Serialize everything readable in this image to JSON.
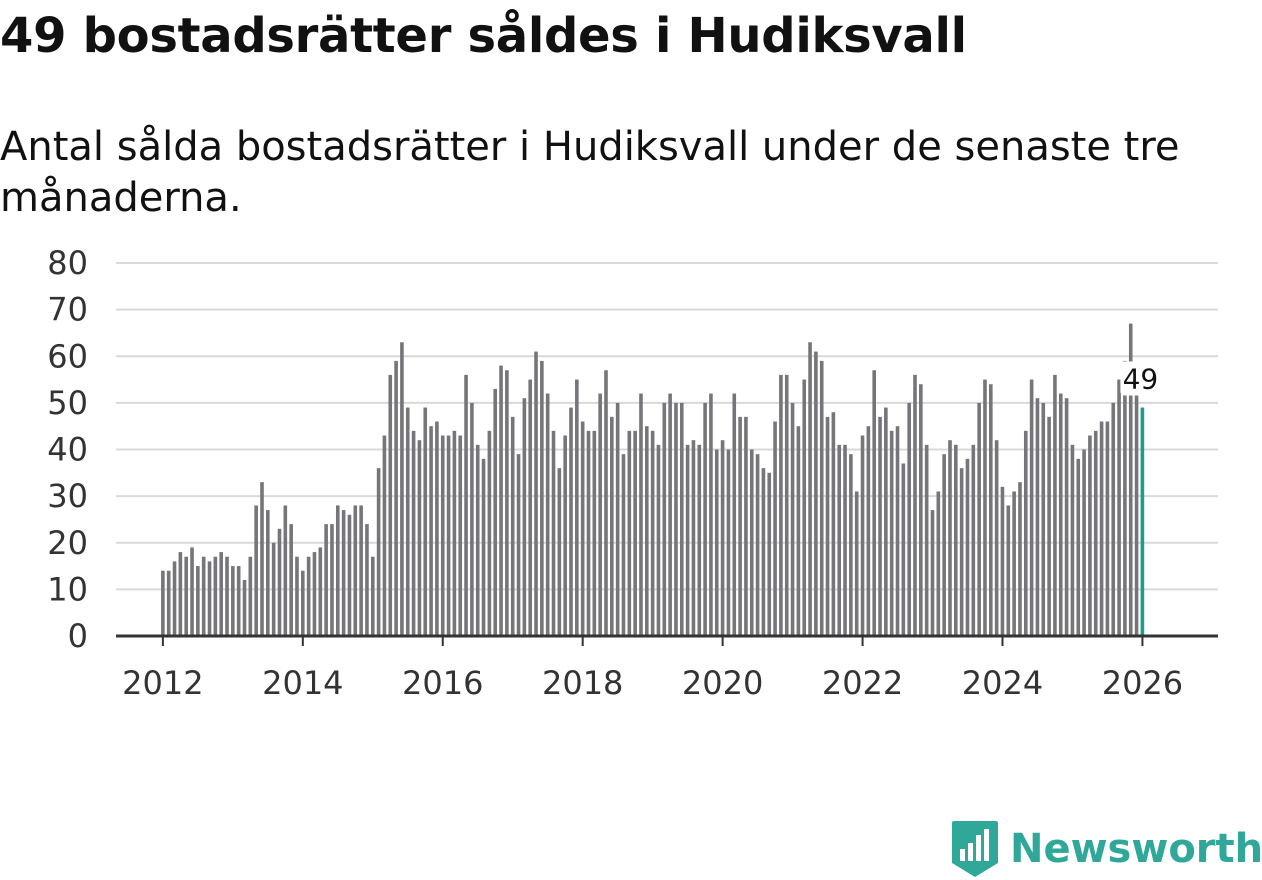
{
  "title": "49 bostadsrätter såldes i Hudiksvall",
  "subtitle": "Antal sålda bostadsrätter i Hudiksvall under de senaste tre månaderna.",
  "brand": {
    "name": "Newsworthy",
    "color": "#2fa89a"
  },
  "chart_data": {
    "type": "bar",
    "title": "49 bostadsrätter såldes i Hudiksvall",
    "xlabel": "",
    "ylabel": "",
    "ylim": [
      0,
      80
    ],
    "yticks": [
      0,
      10,
      20,
      30,
      40,
      50,
      60,
      70,
      80
    ],
    "xlim": [
      2011.33,
      2027.08
    ],
    "xticks": [
      2012,
      2014,
      2016,
      2018,
      2020,
      2022,
      2024,
      2026
    ],
    "x_start": 2012.0,
    "x_step": 0.08333,
    "grid": true,
    "bar_color": "#76767a",
    "highlight_color": "#1a9e8e",
    "highlight_label": "49",
    "values": [
      14,
      14,
      16,
      18,
      17,
      19,
      15,
      17,
      16,
      17,
      18,
      17,
      15,
      15,
      12,
      17,
      28,
      33,
      27,
      20,
      23,
      28,
      24,
      17,
      14,
      17,
      18,
      19,
      24,
      24,
      28,
      27,
      26,
      28,
      28,
      24,
      17,
      36,
      43,
      56,
      59,
      63,
      49,
      44,
      42,
      49,
      45,
      46,
      43,
      43,
      44,
      43,
      56,
      50,
      41,
      38,
      44,
      53,
      58,
      57,
      47,
      39,
      51,
      55,
      61,
      59,
      52,
      44,
      36,
      43,
      49,
      55,
      46,
      44,
      44,
      52,
      57,
      47,
      50,
      39,
      44,
      44,
      52,
      45,
      44,
      41,
      50,
      52,
      50,
      50,
      41,
      42,
      41,
      50,
      52,
      40,
      42,
      40,
      52,
      47,
      47,
      40,
      39,
      36,
      35,
      46,
      56,
      56,
      50,
      45,
      55,
      63,
      61,
      59,
      47,
      48,
      41,
      41,
      39,
      31,
      43,
      45,
      57,
      47,
      49,
      44,
      45,
      37,
      50,
      56,
      54,
      41,
      27,
      31,
      39,
      42,
      41,
      36,
      38,
      41,
      50,
      55,
      54,
      42,
      32,
      28,
      31,
      33,
      44,
      55,
      51,
      50,
      47,
      56,
      52,
      51,
      41,
      38,
      40,
      43,
      44,
      46,
      46,
      50,
      55,
      59,
      67,
      53,
      49
    ]
  }
}
